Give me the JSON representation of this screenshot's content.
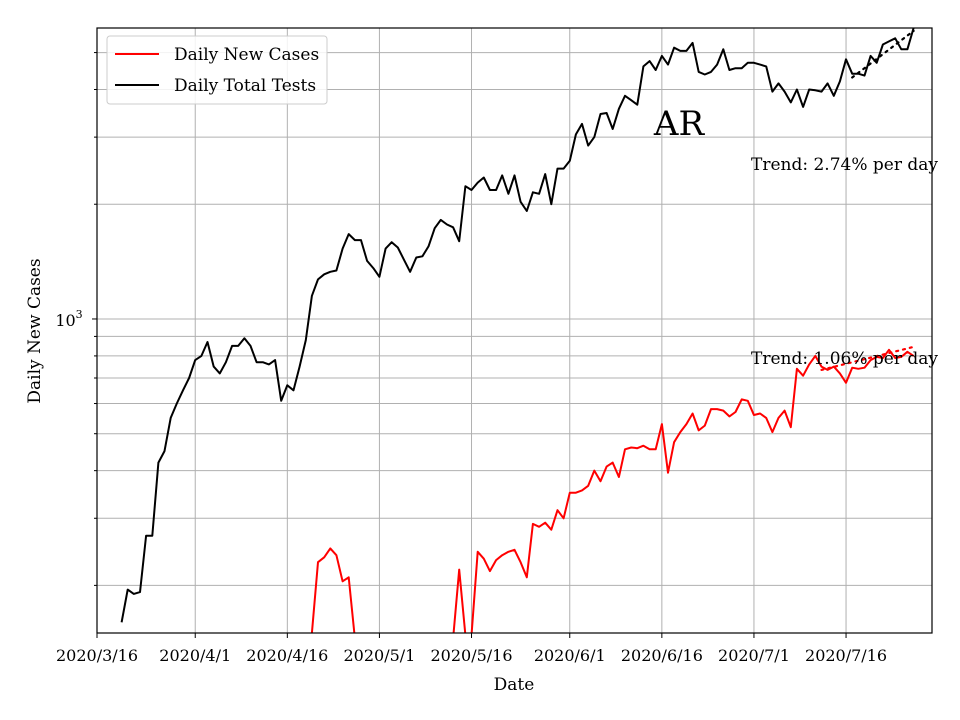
{
  "chart_data": {
    "type": "line",
    "xlabel": "Date",
    "ylabel": "Daily New Cases",
    "yscale": "log",
    "ylim": [
      150,
      5800
    ],
    "xlim": [
      "2020-03-16",
      "2020-07-30"
    ],
    "x_ticks": [
      "2020/3/16",
      "2020/4/1",
      "2020/4/16",
      "2020/5/1",
      "2020/5/16",
      "2020/6/1",
      "2020/6/16",
      "2020/7/1",
      "2020/7/16"
    ],
    "x_tick_dates": [
      "2020-03-16",
      "2020-04-01",
      "2020-04-16",
      "2020-05-01",
      "2020-05-16",
      "2020-06-01",
      "2020-06-16",
      "2020-07-01",
      "2020-07-16"
    ],
    "y_major_tick_label": {
      "base": "10",
      "exp": "3"
    },
    "y_major_tick_value": 1000,
    "grid": true,
    "legend_location": "upper-left",
    "annotation": "AR",
    "trend_labels": [
      "Trend: 2.74% per day",
      "Trend: 1.06% per day"
    ],
    "series": [
      {
        "name": "Daily Total Tests",
        "color": "#000000",
        "points": [
          [
            "2020-03-20",
            160
          ],
          [
            "2020-03-21",
            195
          ],
          [
            "2020-03-22",
            190
          ],
          [
            "2020-03-23",
            192
          ],
          [
            "2020-03-24",
            270
          ],
          [
            "2020-03-25",
            270
          ],
          [
            "2020-03-26",
            420
          ],
          [
            "2020-03-27",
            450
          ],
          [
            "2020-03-28",
            550
          ],
          [
            "2020-03-29",
            600
          ],
          [
            "2020-03-30",
            650
          ],
          [
            "2020-03-31",
            700
          ],
          [
            "2020-04-01",
            780
          ],
          [
            "2020-04-02",
            800
          ],
          [
            "2020-04-03",
            870
          ],
          [
            "2020-04-04",
            750
          ],
          [
            "2020-04-05",
            720
          ],
          [
            "2020-04-06",
            770
          ],
          [
            "2020-04-07",
            850
          ],
          [
            "2020-04-08",
            850
          ],
          [
            "2020-04-09",
            890
          ],
          [
            "2020-04-10",
            850
          ],
          [
            "2020-04-11",
            770
          ],
          [
            "2020-04-12",
            770
          ],
          [
            "2020-04-13",
            760
          ],
          [
            "2020-04-14",
            780
          ],
          [
            "2020-04-15",
            610
          ],
          [
            "2020-04-16",
            670
          ],
          [
            "2020-04-17",
            650
          ],
          [
            "2020-04-18",
            750
          ],
          [
            "2020-04-19",
            880
          ],
          [
            "2020-04-20",
            1150
          ],
          [
            "2020-04-21",
            1270
          ],
          [
            "2020-04-22",
            1310
          ],
          [
            "2020-04-23",
            1330
          ],
          [
            "2020-04-24",
            1340
          ],
          [
            "2020-04-25",
            1530
          ],
          [
            "2020-04-26",
            1670
          ],
          [
            "2020-04-27",
            1610
          ],
          [
            "2020-04-28",
            1610
          ],
          [
            "2020-04-29",
            1420
          ],
          [
            "2020-04-30",
            1360
          ],
          [
            "2020-05-01",
            1290
          ],
          [
            "2020-05-02",
            1530
          ],
          [
            "2020-05-03",
            1590
          ],
          [
            "2020-05-04",
            1540
          ],
          [
            "2020-05-05",
            1430
          ],
          [
            "2020-05-06",
            1330
          ],
          [
            "2020-05-07",
            1450
          ],
          [
            "2020-05-08",
            1460
          ],
          [
            "2020-05-09",
            1550
          ],
          [
            "2020-05-10",
            1730
          ],
          [
            "2020-05-11",
            1820
          ],
          [
            "2020-05-12",
            1770
          ],
          [
            "2020-05-13",
            1740
          ],
          [
            "2020-05-14",
            1600
          ],
          [
            "2020-05-15",
            2230
          ],
          [
            "2020-05-16",
            2180
          ],
          [
            "2020-05-17",
            2280
          ],
          [
            "2020-05-18",
            2350
          ],
          [
            "2020-05-19",
            2180
          ],
          [
            "2020-05-20",
            2180
          ],
          [
            "2020-05-21",
            2380
          ],
          [
            "2020-05-22",
            2130
          ],
          [
            "2020-05-23",
            2380
          ],
          [
            "2020-05-24",
            2030
          ],
          [
            "2020-05-25",
            1920
          ],
          [
            "2020-05-26",
            2150
          ],
          [
            "2020-05-27",
            2130
          ],
          [
            "2020-05-28",
            2400
          ],
          [
            "2020-05-29",
            2000
          ],
          [
            "2020-05-30",
            2480
          ],
          [
            "2020-05-31",
            2480
          ],
          [
            "2020-06-01",
            2600
          ],
          [
            "2020-06-02",
            3050
          ],
          [
            "2020-06-03",
            3250
          ],
          [
            "2020-06-04",
            2850
          ],
          [
            "2020-06-05",
            3000
          ],
          [
            "2020-06-06",
            3450
          ],
          [
            "2020-06-07",
            3470
          ],
          [
            "2020-06-08",
            3150
          ],
          [
            "2020-06-09",
            3560
          ],
          [
            "2020-06-10",
            3850
          ],
          [
            "2020-06-11",
            3750
          ],
          [
            "2020-06-12",
            3650
          ],
          [
            "2020-06-13",
            4600
          ],
          [
            "2020-06-14",
            4750
          ],
          [
            "2020-06-15",
            4500
          ],
          [
            "2020-06-16",
            4900
          ],
          [
            "2020-06-17",
            4650
          ],
          [
            "2020-06-18",
            5150
          ],
          [
            "2020-06-19",
            5050
          ],
          [
            "2020-06-20",
            5050
          ],
          [
            "2020-06-21",
            5300
          ],
          [
            "2020-06-22",
            4450
          ],
          [
            "2020-06-23",
            4380
          ],
          [
            "2020-06-24",
            4450
          ],
          [
            "2020-06-25",
            4650
          ],
          [
            "2020-06-26",
            5100
          ],
          [
            "2020-06-27",
            4500
          ],
          [
            "2020-06-28",
            4550
          ],
          [
            "2020-06-29",
            4550
          ],
          [
            "2020-06-30",
            4700
          ],
          [
            "2020-07-01",
            4700
          ],
          [
            "2020-07-02",
            4650
          ],
          [
            "2020-07-03",
            4600
          ],
          [
            "2020-07-04",
            3950
          ],
          [
            "2020-07-05",
            4150
          ],
          [
            "2020-07-06",
            3950
          ],
          [
            "2020-07-07",
            3700
          ],
          [
            "2020-07-08",
            4000
          ],
          [
            "2020-07-09",
            3600
          ],
          [
            "2020-07-10",
            4000
          ],
          [
            "2020-07-11",
            3980
          ],
          [
            "2020-07-12",
            3950
          ],
          [
            "2020-07-13",
            4150
          ],
          [
            "2020-07-14",
            3850
          ],
          [
            "2020-07-15",
            4200
          ],
          [
            "2020-07-16",
            4800
          ],
          [
            "2020-07-17",
            4400
          ],
          [
            "2020-07-18",
            4400
          ],
          [
            "2020-07-19",
            4350
          ],
          [
            "2020-07-20",
            4900
          ],
          [
            "2020-07-21",
            4700
          ],
          [
            "2020-07-22",
            5250
          ],
          [
            "2020-07-23",
            5350
          ],
          [
            "2020-07-24",
            5450
          ],
          [
            "2020-07-25",
            5100
          ],
          [
            "2020-07-26",
            5100
          ],
          [
            "2020-07-27",
            5800
          ]
        ],
        "trend": [
          [
            "2020-07-17",
            4300
          ],
          [
            "2020-07-27",
            5700
          ]
        ]
      },
      {
        "name": "Daily New Cases",
        "color": "#ff0000",
        "points": [
          [
            "2020-04-19",
            145
          ],
          [
            "2020-04-20",
            150
          ],
          [
            "2020-04-21",
            230
          ],
          [
            "2020-04-22",
            237
          ],
          [
            "2020-04-23",
            250
          ],
          [
            "2020-04-24",
            240
          ],
          [
            "2020-04-25",
            205
          ],
          [
            "2020-04-26",
            210
          ],
          [
            "2020-04-27",
            145
          ],
          [
            "2020-05-13",
            145
          ],
          [
            "2020-05-14",
            220
          ],
          [
            "2020-05-15",
            148
          ],
          [
            "2020-05-16",
            148
          ],
          [
            "2020-05-17",
            245
          ],
          [
            "2020-05-18",
            235
          ],
          [
            "2020-05-19",
            218
          ],
          [
            "2020-05-20",
            233
          ],
          [
            "2020-05-21",
            240
          ],
          [
            "2020-05-22",
            245
          ],
          [
            "2020-05-23",
            248
          ],
          [
            "2020-05-24",
            230
          ],
          [
            "2020-05-25",
            210
          ],
          [
            "2020-05-26",
            290
          ],
          [
            "2020-05-27",
            285
          ],
          [
            "2020-05-28",
            292
          ],
          [
            "2020-05-29",
            280
          ],
          [
            "2020-05-30",
            315
          ],
          [
            "2020-05-31",
            300
          ],
          [
            "2020-06-01",
            350
          ],
          [
            "2020-06-02",
            350
          ],
          [
            "2020-06-03",
            355
          ],
          [
            "2020-06-04",
            365
          ],
          [
            "2020-06-05",
            400
          ],
          [
            "2020-06-06",
            375
          ],
          [
            "2020-06-07",
            410
          ],
          [
            "2020-06-08",
            420
          ],
          [
            "2020-06-09",
            385
          ],
          [
            "2020-06-10",
            455
          ],
          [
            "2020-06-11",
            460
          ],
          [
            "2020-06-12",
            458
          ],
          [
            "2020-06-13",
            465
          ],
          [
            "2020-06-14",
            455
          ],
          [
            "2020-06-15",
            455
          ],
          [
            "2020-06-16",
            530
          ],
          [
            "2020-06-17",
            395
          ],
          [
            "2020-06-18",
            475
          ],
          [
            "2020-06-19",
            505
          ],
          [
            "2020-06-20",
            530
          ],
          [
            "2020-06-21",
            565
          ],
          [
            "2020-06-22",
            510
          ],
          [
            "2020-06-23",
            525
          ],
          [
            "2020-06-24",
            580
          ],
          [
            "2020-06-25",
            580
          ],
          [
            "2020-06-26",
            575
          ],
          [
            "2020-06-27",
            555
          ],
          [
            "2020-06-28",
            570
          ],
          [
            "2020-06-29",
            615
          ],
          [
            "2020-06-30",
            610
          ],
          [
            "2020-07-01",
            560
          ],
          [
            "2020-07-02",
            565
          ],
          [
            "2020-07-03",
            550
          ],
          [
            "2020-07-04",
            505
          ],
          [
            "2020-07-05",
            550
          ],
          [
            "2020-07-06",
            575
          ],
          [
            "2020-07-07",
            520
          ],
          [
            "2020-07-08",
            740
          ],
          [
            "2020-07-09",
            710
          ],
          [
            "2020-07-10",
            760
          ],
          [
            "2020-07-11",
            800
          ],
          [
            "2020-07-12",
            750
          ],
          [
            "2020-07-13",
            735
          ],
          [
            "2020-07-14",
            750
          ],
          [
            "2020-07-15",
            720
          ],
          [
            "2020-07-16",
            680
          ],
          [
            "2020-07-17",
            745
          ],
          [
            "2020-07-18",
            740
          ],
          [
            "2020-07-19",
            745
          ],
          [
            "2020-07-20",
            780
          ],
          [
            "2020-07-21",
            795
          ],
          [
            "2020-07-22",
            790
          ],
          [
            "2020-07-23",
            830
          ],
          [
            "2020-07-24",
            790
          ],
          [
            "2020-07-25",
            795
          ],
          [
            "2020-07-26",
            820
          ],
          [
            "2020-07-27",
            800
          ]
        ],
        "trend": [
          [
            "2020-07-12",
            735
          ],
          [
            "2020-07-27",
            845
          ]
        ]
      }
    ]
  }
}
